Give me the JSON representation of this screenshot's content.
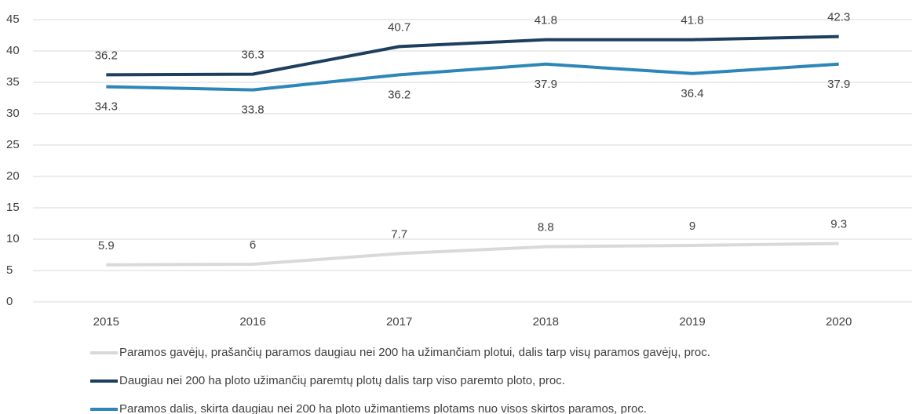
{
  "chart_data": {
    "type": "line",
    "categories": [
      "2015",
      "2016",
      "2017",
      "2018",
      "2019",
      "2020"
    ],
    "series": [
      {
        "name": "Paramos gavėjų, prašančių paramos daugiau nei 200 ha užimančiam plotui, dalis tarp visų paramos gavėjų, proc.",
        "color": "#d9d9d9",
        "values": [
          5.9,
          6,
          7.7,
          8.8,
          9,
          9.3
        ]
      },
      {
        "name": "Daugiau nei 200 ha ploto užimančių paremtų plotų dalis tarp viso paremto ploto, proc.",
        "color": "#1c3f5e",
        "values": [
          36.2,
          36.3,
          40.7,
          41.8,
          41.8,
          42.3
        ]
      },
      {
        "name": "Paramos dalis, skirta daugiau nei 200 ha ploto užimantiems plotams nuo visos skirtos paramos, proc.",
        "color": "#2e86b8",
        "values": [
          34.3,
          33.8,
          36.2,
          37.9,
          36.4,
          37.9
        ]
      }
    ],
    "ylim": [
      0,
      45
    ],
    "yticks": [
      0,
      5,
      10,
      15,
      20,
      25,
      30,
      35,
      40,
      45
    ],
    "grid": true,
    "legend": "bottom"
  }
}
